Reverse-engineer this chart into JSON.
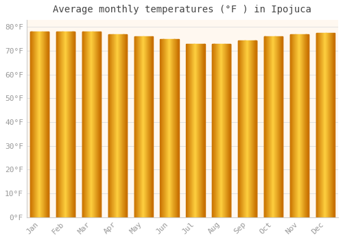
{
  "months": [
    "Jan",
    "Feb",
    "Mar",
    "Apr",
    "May",
    "Jun",
    "Jul",
    "Aug",
    "Sep",
    "Oct",
    "Nov",
    "Dec"
  ],
  "values": [
    78,
    78,
    78,
    77,
    76,
    75,
    73,
    73,
    74.5,
    76,
    77,
    77.5
  ],
  "title": "Average monthly temperatures (°F ) in Ipojuca",
  "ylabel_ticks": [
    0,
    10,
    20,
    30,
    40,
    50,
    60,
    70,
    80
  ],
  "ylim": [
    0,
    83
  ],
  "bar_edge_color": "#C87000",
  "bar_center_color": "#FFD040",
  "background_color": "#FFFFFF",
  "plot_bg_color": "#FFF8F0",
  "grid_color": "#E0E0E0",
  "tick_label_color": "#999999",
  "title_color": "#444444",
  "title_fontsize": 10,
  "tick_fontsize": 8
}
